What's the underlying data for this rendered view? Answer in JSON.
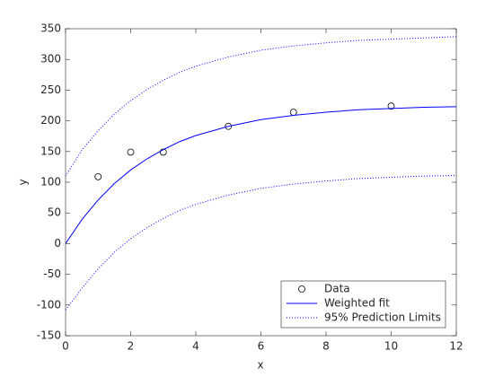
{
  "chart_data": {
    "type": "line",
    "xlabel": "x",
    "ylabel": "y",
    "xlim": [
      0,
      12
    ],
    "xticks": [
      0,
      2,
      4,
      6,
      8,
      10,
      12
    ],
    "ylim": [
      -150,
      350
    ],
    "yticks": [
      -150,
      -100,
      -50,
      0,
      50,
      100,
      150,
      200,
      250,
      300,
      350
    ],
    "legend": "lower right",
    "series": [
      {
        "name": "Data",
        "style": "marker",
        "color": "#000000",
        "x": [
          1,
          2,
          3,
          5,
          7,
          10
        ],
        "values": [
          109,
          149,
          149,
          191,
          214,
          224
        ]
      },
      {
        "name": "Weighted fit",
        "style": "solid",
        "color": "#0000ff",
        "x": [
          0,
          0.5,
          1,
          1.5,
          2,
          2.5,
          3,
          3.5,
          4,
          5,
          6,
          7,
          8,
          9,
          10,
          11,
          12
        ],
        "values": [
          0,
          39,
          71,
          98,
          120,
          138,
          153,
          166,
          176,
          191,
          202,
          209,
          214,
          218,
          220,
          222,
          223
        ]
      },
      {
        "name": "95% Prediction Limits",
        "style": "dotted",
        "color": "#0000ff",
        "x": [
          0,
          0.5,
          1,
          1.5,
          2,
          2.5,
          3,
          3.5,
          4,
          5,
          6,
          7,
          8,
          9,
          10,
          11,
          12
        ],
        "values": [
          110,
          152,
          184,
          211,
          233,
          251,
          266,
          279,
          289,
          304,
          315,
          322,
          327,
          331,
          333,
          335,
          337
        ],
        "lower": [
          -108,
          -73,
          -41,
          -14,
          8,
          26,
          41,
          54,
          64,
          79,
          90,
          97,
          102,
          106,
          108,
          110,
          111
        ]
      }
    ]
  }
}
